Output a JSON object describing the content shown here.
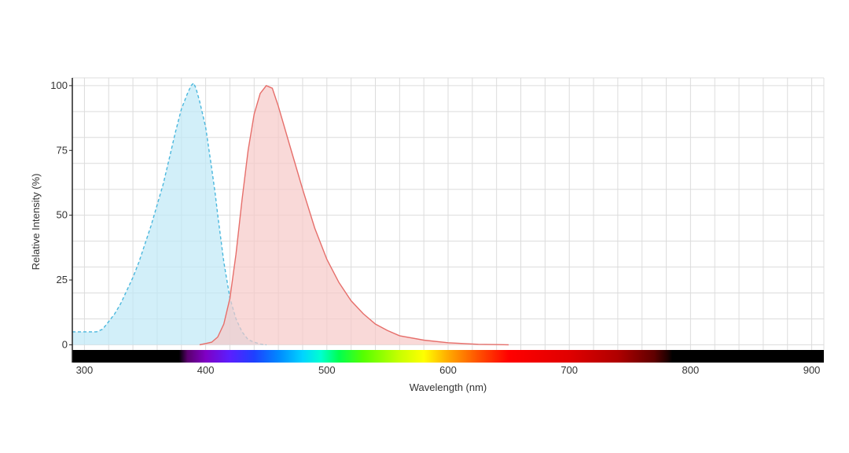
{
  "chart_data": {
    "type": "area",
    "xlabel": "Wavelength (nm)",
    "ylabel": "Relative Intensity (%)",
    "xlim": [
      290,
      910
    ],
    "ylim": [
      -2,
      103
    ],
    "x_ticks": [
      300,
      400,
      500,
      600,
      700,
      800,
      900
    ],
    "y_ticks": [
      0,
      25,
      50,
      75,
      100
    ],
    "grid": true,
    "grid_step_x": 20,
    "grid_step_y": 10,
    "spectrum_bar": true,
    "series": [
      {
        "key": "excitation",
        "line_style": "dashed",
        "color": "#4ab7dd",
        "fill": "#bfe8f7",
        "x": [
          290,
          300,
          310,
          315,
          320,
          325,
          330,
          335,
          340,
          345,
          350,
          355,
          360,
          365,
          370,
          375,
          380,
          385,
          388,
          390,
          392,
          395,
          400,
          405,
          408,
          410,
          415,
          420,
          425,
          430,
          435,
          440,
          445,
          450
        ],
        "y": [
          5,
          5,
          5,
          6,
          9,
          12,
          16,
          21,
          26,
          32,
          39,
          46,
          54,
          62,
          72,
          82,
          91,
          97,
          100,
          101,
          99,
          94,
          84,
          68,
          58,
          50,
          32,
          18,
          10,
          5,
          2,
          1,
          0.3,
          0
        ]
      },
      {
        "key": "emission",
        "line_style": "solid",
        "color": "#e66e6a",
        "fill": "#f6c9c8",
        "x": [
          395,
          400,
          405,
          410,
          415,
          420,
          425,
          430,
          435,
          440,
          445,
          450,
          455,
          460,
          465,
          470,
          480,
          490,
          500,
          510,
          520,
          530,
          540,
          550,
          560,
          580,
          600,
          625,
          650
        ],
        "y": [
          0,
          0.5,
          1,
          3,
          8,
          18,
          35,
          56,
          75,
          89,
          97,
          100,
          99,
          92,
          84,
          76,
          60,
          45,
          33,
          24,
          17,
          12,
          8,
          5.5,
          3.5,
          1.8,
          0.8,
          0.2,
          0
        ]
      }
    ]
  }
}
